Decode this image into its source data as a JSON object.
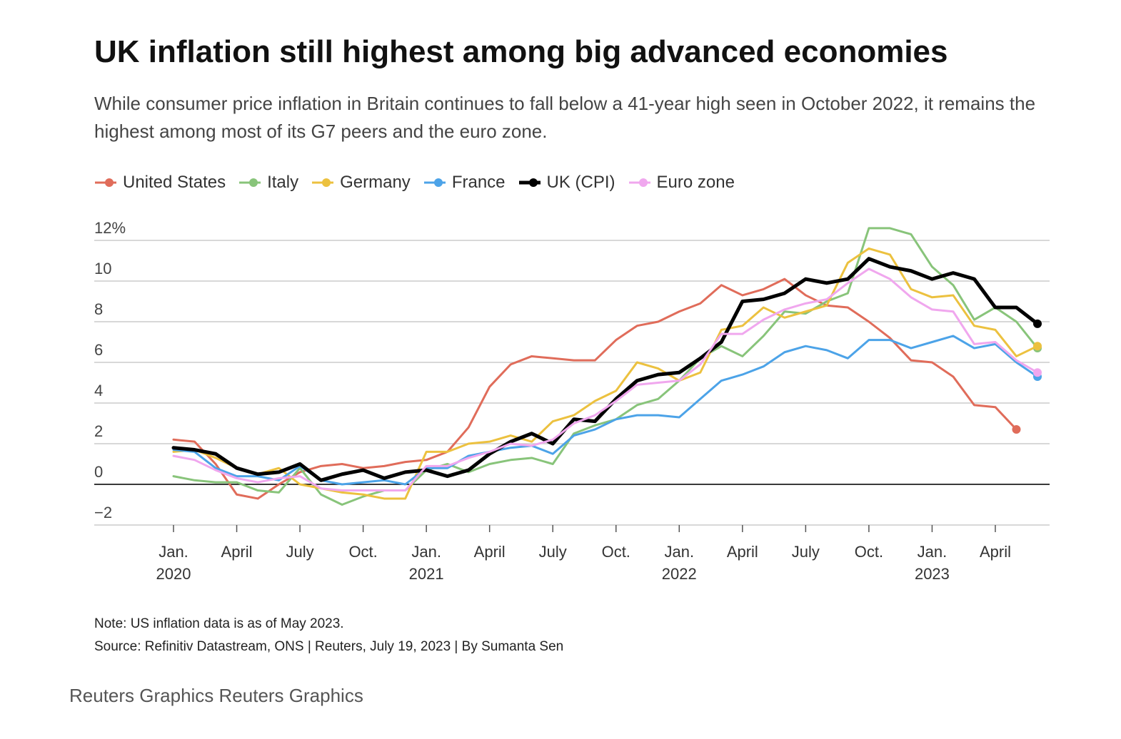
{
  "chart_data": {
    "type": "line",
    "title": "UK inflation still highest among big advanced economies",
    "subtitle": "While consumer price inflation in Britain continues to fall below a 41-year high seen in October 2022, it remains the highest among most of its G7 peers and the euro zone.",
    "note": "Note: US inflation data is as of May 2023.",
    "source": "Source: Refinitiv Datastream, ONS | Reuters, July 19, 2023 | By Sumanta Sen",
    "credit": "Reuters Graphics Reuters Graphics",
    "categories": [
      "Jan.\n2020",
      null,
      null,
      "April",
      null,
      null,
      "July",
      null,
      null,
      "Oct.",
      null,
      null,
      "Jan.\n2021",
      null,
      null,
      "April",
      null,
      null,
      "July",
      null,
      null,
      "Oct.",
      null,
      null,
      "Jan.\n2022",
      null,
      null,
      "April",
      null,
      null,
      "July",
      null,
      null,
      "Oct.",
      null,
      null,
      "Jan.\n2023",
      null,
      null,
      "April",
      null,
      null
    ],
    "ylim": [
      -2,
      12
    ],
    "yticks": [
      {
        "value": -2,
        "label": "−2"
      },
      0,
      2,
      4,
      6,
      8,
      10,
      {
        "value": 12,
        "label": "12%"
      }
    ],
    "grid": true,
    "legend": "top-left",
    "series": [
      {
        "name": "United States",
        "color": "#e06c5a",
        "values": [
          2.2,
          2.1,
          1.0,
          -0.5,
          -0.7,
          0.0,
          0.6,
          0.9,
          1.0,
          0.8,
          0.9,
          1.1,
          1.2,
          1.6,
          2.8,
          4.8,
          5.9,
          6.3,
          6.2,
          6.1,
          6.1,
          7.1,
          7.8,
          8.0,
          8.5,
          8.9,
          9.8,
          9.3,
          9.6,
          10.1,
          9.3,
          8.8,
          8.7,
          8.0,
          7.2,
          6.1,
          6.0,
          5.3,
          3.9,
          3.8,
          2.7,
          null
        ]
      },
      {
        "name": "Italy",
        "color": "#88c47a",
        "values": [
          0.4,
          0.2,
          0.1,
          0.1,
          -0.3,
          -0.4,
          0.8,
          -0.5,
          -1.0,
          -0.6,
          -0.3,
          -0.3,
          0.7,
          1.0,
          0.6,
          1.0,
          1.2,
          1.3,
          1.0,
          2.5,
          2.9,
          3.2,
          3.9,
          4.2,
          5.1,
          6.2,
          6.8,
          6.3,
          7.3,
          8.5,
          8.4,
          9.0,
          9.4,
          12.6,
          12.6,
          12.3,
          10.7,
          9.8,
          8.1,
          8.7,
          8.0,
          6.7
        ]
      },
      {
        "name": "Germany",
        "color": "#ecc13f",
        "values": [
          1.6,
          1.7,
          1.3,
          0.8,
          0.5,
          0.8,
          0.0,
          -0.2,
          -0.4,
          -0.5,
          -0.7,
          -0.7,
          1.6,
          1.6,
          2.0,
          2.1,
          2.4,
          2.1,
          3.1,
          3.4,
          4.1,
          4.6,
          6.0,
          5.7,
          5.1,
          5.5,
          7.6,
          7.8,
          8.7,
          8.2,
          8.5,
          8.8,
          10.9,
          11.6,
          11.3,
          9.6,
          9.2,
          9.3,
          7.8,
          7.6,
          6.3,
          6.8
        ]
      },
      {
        "name": "France",
        "color": "#4ca3e8",
        "values": [
          1.7,
          1.6,
          0.8,
          0.4,
          0.4,
          0.2,
          0.9,
          0.2,
          0.0,
          0.1,
          0.2,
          0.0,
          0.8,
          0.8,
          1.4,
          1.6,
          1.8,
          1.9,
          1.5,
          2.4,
          2.7,
          3.2,
          3.4,
          3.4,
          3.3,
          4.2,
          5.1,
          5.4,
          5.8,
          6.5,
          6.8,
          6.6,
          6.2,
          7.1,
          7.1,
          6.7,
          7.0,
          7.3,
          6.7,
          6.9,
          6.0,
          5.3
        ]
      },
      {
        "name": "UK (CPI)",
        "color": "#000000",
        "values": [
          1.8,
          1.7,
          1.5,
          0.8,
          0.5,
          0.6,
          1.0,
          0.2,
          0.5,
          0.7,
          0.3,
          0.6,
          0.7,
          0.4,
          0.7,
          1.5,
          2.1,
          2.5,
          2.0,
          3.2,
          3.1,
          4.2,
          5.1,
          5.4,
          5.5,
          6.2,
          7.0,
          9.0,
          9.1,
          9.4,
          10.1,
          9.9,
          10.1,
          11.1,
          10.7,
          10.5,
          10.1,
          10.4,
          10.1,
          8.7,
          8.7,
          7.9
        ]
      },
      {
        "name": "Euro zone",
        "color": "#f0a7ee",
        "values": [
          1.4,
          1.2,
          0.7,
          0.3,
          0.1,
          0.3,
          0.4,
          -0.2,
          -0.3,
          -0.3,
          -0.3,
          -0.3,
          0.9,
          0.9,
          1.3,
          1.6,
          2.0,
          1.9,
          2.2,
          3.0,
          3.4,
          4.1,
          4.9,
          5.0,
          5.1,
          5.9,
          7.4,
          7.4,
          8.1,
          8.6,
          8.9,
          9.1,
          9.9,
          10.6,
          10.1,
          9.2,
          8.6,
          8.5,
          6.9,
          7.0,
          6.1,
          5.5
        ]
      }
    ]
  }
}
